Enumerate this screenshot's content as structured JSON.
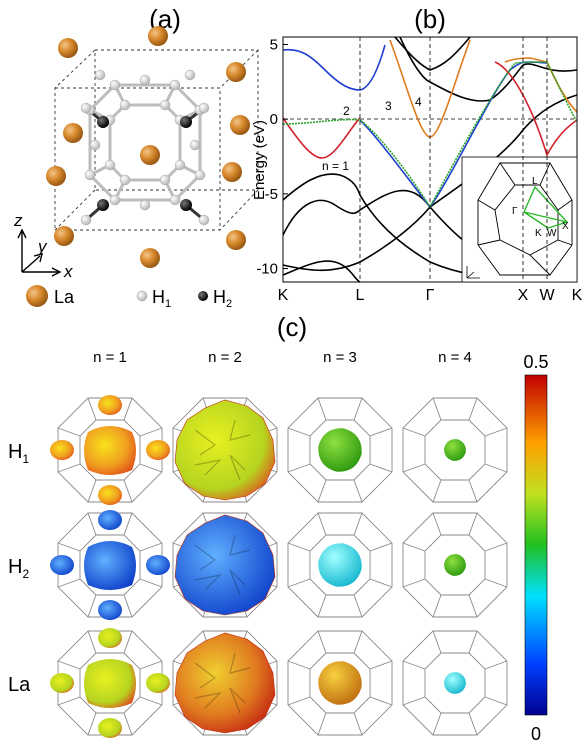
{
  "panel_a": {
    "label": "(a)",
    "axes": {
      "z": "z",
      "y": "y",
      "x": "x"
    },
    "legend": [
      {
        "symbol": "La"
      },
      {
        "symbol": "H",
        "subscript": "1"
      },
      {
        "symbol": "H",
        "subscript": "2"
      }
    ]
  },
  "panel_b": {
    "label": "(b)",
    "ylabel": "Energy (eV)",
    "ylim": [
      -10.9,
      5.5
    ],
    "yticks": [
      5,
      0,
      -5,
      -10
    ],
    "kpath": [
      "K",
      "L",
      "Γ",
      "X",
      "W",
      "K"
    ],
    "band_labels": [
      "n = 1",
      "2",
      "3",
      "4"
    ],
    "inset_labels": [
      "L",
      "Γ",
      "K",
      "W",
      "X"
    ]
  },
  "panel_c": {
    "label": "(c)",
    "columns": [
      "n = 1",
      "n = 2",
      "n = 3",
      "n = 4"
    ],
    "rows": [
      {
        "symbol": "H",
        "subscript": "1"
      },
      {
        "symbol": "H",
        "subscript": "2"
      },
      {
        "symbol": "La"
      }
    ],
    "colorbar": {
      "max": 0.5,
      "min": 0
    }
  }
}
